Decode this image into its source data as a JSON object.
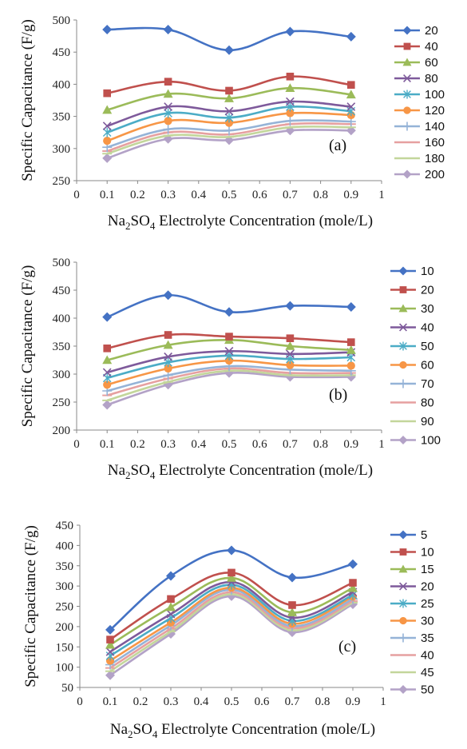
{
  "chart_data": [
    {
      "type": "line",
      "panel_label": "(a)",
      "ylabel": "Specific Capacitance (F/g)",
      "xlabel_parts": {
        "pre": "Na",
        "sub1": "2",
        "mid": "SO",
        "sub2": "4",
        "post": " Electrolyte Concentration (mole/L)"
      },
      "xlim": [
        0,
        1
      ],
      "ylim": [
        250,
        500
      ],
      "xticks": [
        "0",
        "0.1",
        "0.2",
        "0.3",
        "0.4",
        "0.5",
        "0.6",
        "0.7",
        "0.8",
        "0.9",
        "1"
      ],
      "yticks": [
        "250",
        "300",
        "350",
        "400",
        "450",
        "500"
      ],
      "x": [
        0.1,
        0.3,
        0.5,
        0.7,
        0.9
      ],
      "legend_position": "right",
      "series": [
        {
          "name": "20",
          "color": "#4472C4",
          "marker": "diamond",
          "values": [
            485,
            485,
            453,
            482,
            474
          ]
        },
        {
          "name": "40",
          "color": "#C0504D",
          "marker": "square",
          "values": [
            386,
            404,
            390,
            412,
            399
          ]
        },
        {
          "name": "60",
          "color": "#9BBB59",
          "marker": "triangle",
          "values": [
            360,
            385,
            378,
            394,
            384
          ]
        },
        {
          "name": "80",
          "color": "#7E5A9B",
          "marker": "x",
          "values": [
            335,
            365,
            358,
            373,
            365
          ]
        },
        {
          "name": "100",
          "color": "#4BACC6",
          "marker": "star",
          "values": [
            325,
            355,
            348,
            365,
            358
          ]
        },
        {
          "name": "120",
          "color": "#F79646",
          "marker": "circle",
          "values": [
            312,
            343,
            340,
            355,
            352
          ]
        },
        {
          "name": "140",
          "color": "#95B3D7",
          "marker": "plus",
          "values": [
            302,
            330,
            328,
            343,
            342
          ]
        },
        {
          "name": "160",
          "color": "#E6A0A0",
          "marker": "dash",
          "values": [
            296,
            325,
            322,
            338,
            338
          ]
        },
        {
          "name": "180",
          "color": "#C3D69B",
          "marker": "dash",
          "values": [
            292,
            320,
            318,
            333,
            333
          ]
        },
        {
          "name": "200",
          "color": "#B3A2C7",
          "marker": "diamond",
          "values": [
            285,
            315,
            313,
            328,
            328
          ]
        }
      ]
    },
    {
      "type": "line",
      "panel_label": "(b)",
      "ylabel": "Specific Capacitance (F/g)",
      "xlabel_parts": {
        "pre": "Na",
        "sub1": "2",
        "mid": "SO",
        "sub2": "4",
        "post": " Electrolyte Concentration (mole/L)"
      },
      "xlim": [
        0,
        1
      ],
      "ylim": [
        200,
        500
      ],
      "xticks": [
        "0",
        "0.1",
        "0.2",
        "0.3",
        "0.4",
        "0.5",
        "0.6",
        "0.7",
        "0.8",
        "0.9",
        "1"
      ],
      "yticks": [
        "200",
        "250",
        "300",
        "350",
        "400",
        "450",
        "500"
      ],
      "x": [
        0.1,
        0.3,
        0.5,
        0.7,
        0.9
      ],
      "legend_position": "right",
      "series": [
        {
          "name": "10",
          "color": "#4472C4",
          "marker": "diamond",
          "values": [
            402,
            441,
            411,
            422,
            420
          ]
        },
        {
          "name": "20",
          "color": "#C0504D",
          "marker": "square",
          "values": [
            346,
            370,
            367,
            364,
            357
          ]
        },
        {
          "name": "30",
          "color": "#9BBB59",
          "marker": "triangle",
          "values": [
            325,
            352,
            361,
            350,
            343
          ]
        },
        {
          "name": "40",
          "color": "#7E5A9B",
          "marker": "x",
          "values": [
            303,
            331,
            341,
            336,
            339
          ]
        },
        {
          "name": "50",
          "color": "#4BACC6",
          "marker": "star",
          "values": [
            293,
            321,
            333,
            327,
            330
          ]
        },
        {
          "name": "60",
          "color": "#F79646",
          "marker": "circle",
          "values": [
            281,
            310,
            324,
            316,
            315
          ]
        },
        {
          "name": "70",
          "color": "#95B3D7",
          "marker": "plus",
          "values": [
            270,
            298,
            314,
            308,
            306
          ]
        },
        {
          "name": "80",
          "color": "#E6A0A0",
          "marker": "dash",
          "values": [
            262,
            292,
            310,
            302,
            302
          ]
        },
        {
          "name": "90",
          "color": "#C3D69B",
          "marker": "dash",
          "values": [
            253,
            286,
            306,
            298,
            298
          ]
        },
        {
          "name": "100",
          "color": "#B3A2C7",
          "marker": "diamond",
          "values": [
            245,
            281,
            302,
            295,
            295
          ]
        }
      ]
    },
    {
      "type": "line",
      "panel_label": "(c)",
      "ylabel": "Specific Capacitance (F/g)",
      "xlabel_parts": {
        "pre": "Na",
        "sub1": "2",
        "mid": "SO",
        "sub2": "4",
        "post": "  Electrolyte Concentration (mole/L)"
      },
      "xlim": [
        0,
        1
      ],
      "ylim": [
        50,
        450
      ],
      "xticks": [
        "0",
        "0.1",
        "0.2",
        "0.3",
        "0.4",
        "0.5",
        "0.6",
        "0.7",
        "0.8",
        "0.9",
        "1"
      ],
      "yticks": [
        "50",
        "100",
        "150",
        "200",
        "250",
        "300",
        "350",
        "400",
        "450"
      ],
      "x": [
        0.1,
        0.3,
        0.5,
        0.7,
        0.9
      ],
      "legend_position": "right",
      "series": [
        {
          "name": "5",
          "color": "#4472C4",
          "marker": "diamond",
          "values": [
            192,
            325,
            388,
            321,
            354
          ]
        },
        {
          "name": "10",
          "color": "#C0504D",
          "marker": "square",
          "values": [
            168,
            268,
            333,
            253,
            308
          ]
        },
        {
          "name": "15",
          "color": "#9BBB59",
          "marker": "triangle",
          "values": [
            155,
            248,
            320,
            235,
            295
          ]
        },
        {
          "name": "20",
          "color": "#7E5A9B",
          "marker": "x",
          "values": [
            138,
            231,
            310,
            222,
            285
          ]
        },
        {
          "name": "25",
          "color": "#4BACC6",
          "marker": "star",
          "values": [
            128,
            221,
            303,
            214,
            278
          ]
        },
        {
          "name": "30",
          "color": "#F79646",
          "marker": "circle",
          "values": [
            116,
            210,
            296,
            207,
            274
          ]
        },
        {
          "name": "35",
          "color": "#95B3D7",
          "marker": "plus",
          "values": [
            106,
            203,
            291,
            201,
            268
          ]
        },
        {
          "name": "40",
          "color": "#E6A0A0",
          "marker": "dash",
          "values": [
            98,
            195,
            285,
            196,
            263
          ]
        },
        {
          "name": "45",
          "color": "#C3D69B",
          "marker": "dash",
          "values": [
            90,
            188,
            280,
            191,
            259
          ]
        },
        {
          "name": "50",
          "color": "#B3A2C7",
          "marker": "diamond",
          "values": [
            80,
            182,
            275,
            186,
            255
          ]
        }
      ]
    }
  ]
}
